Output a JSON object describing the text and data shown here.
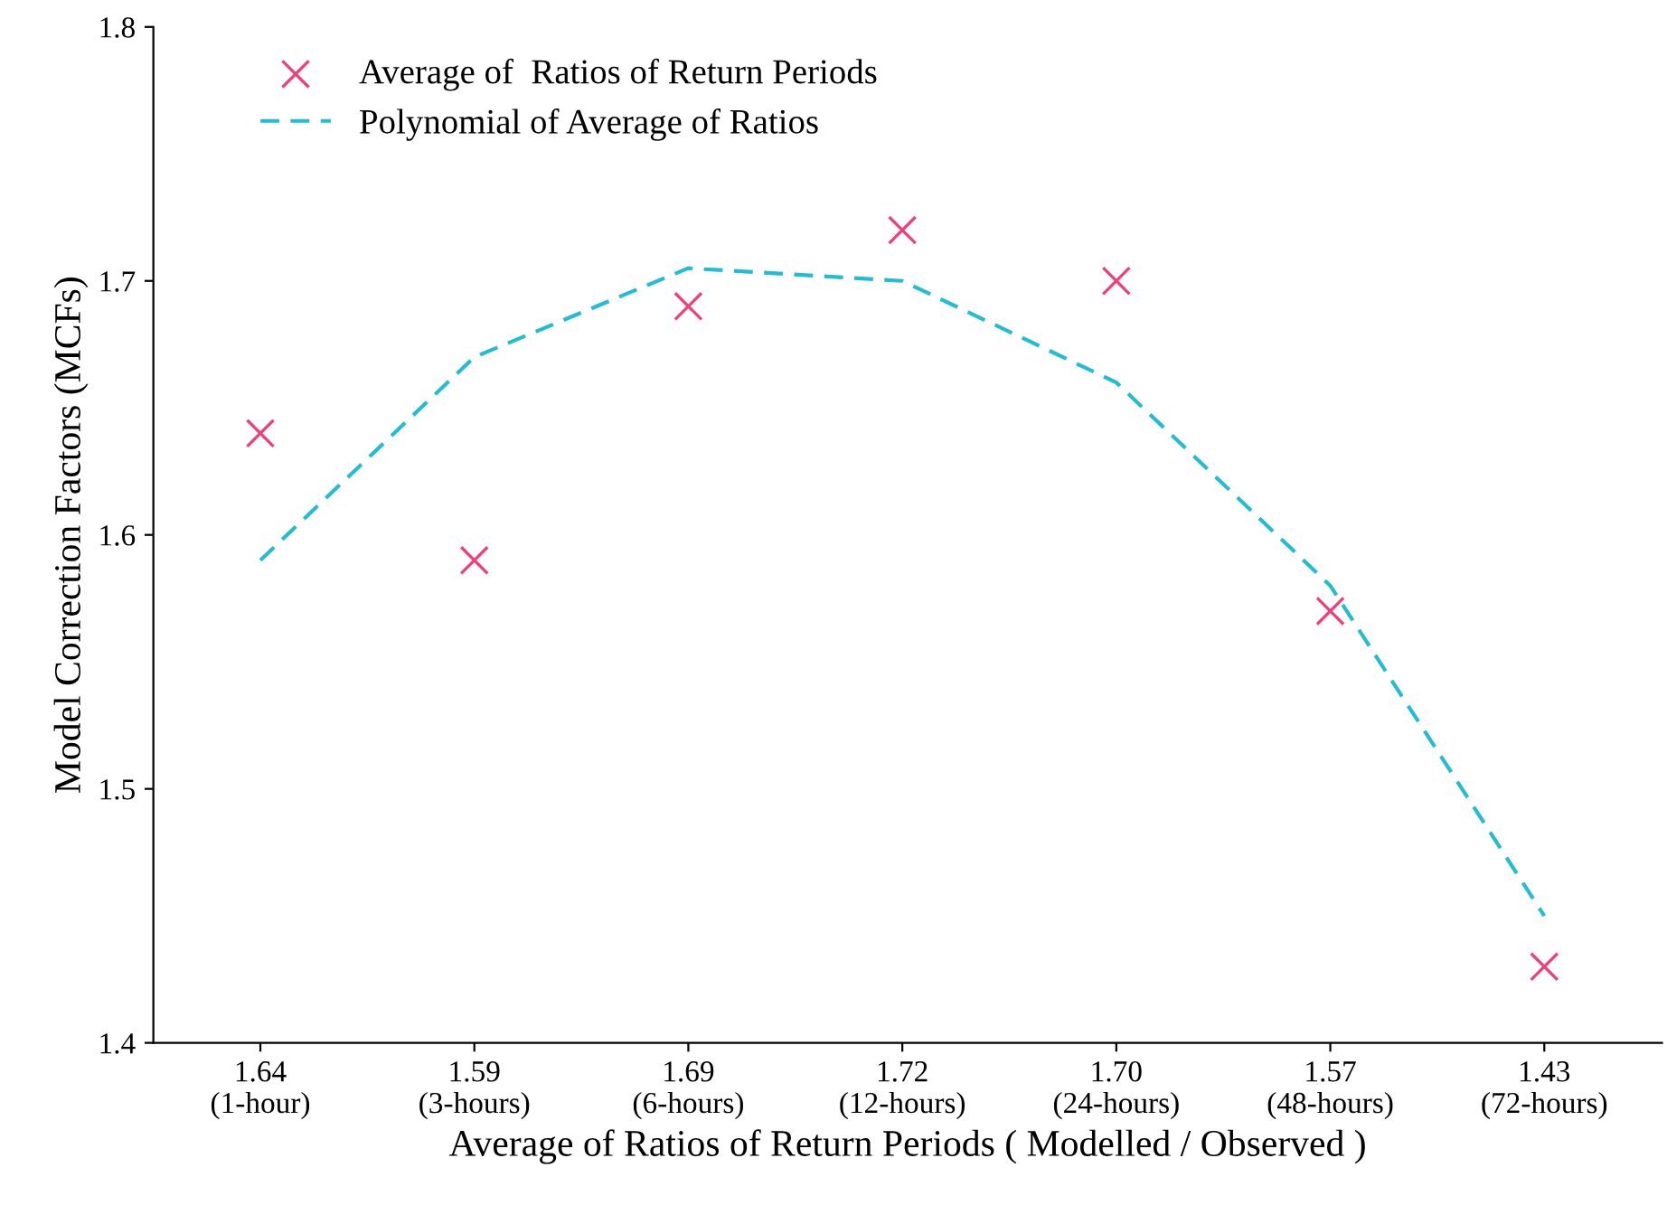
{
  "chart_data": {
    "type": "scatter",
    "xlabel": "Average of Ratios of Return Periods ( Modelled / Observed )",
    "ylabel": "Model Correction Factors (MCFs)",
    "categories": [
      "1.64\n(1-hour)",
      "1.59\n(3-hours)",
      "1.69\n(6-hours)",
      "1.72\n(12-hours)",
      "1.70\n(24-hours)",
      "1.57\n(48-hours)",
      "1.43\n(72-hours)"
    ],
    "series": [
      {
        "name": "Average of  Ratios of Return Periods",
        "color": "#f0407a",
        "marker": "cross",
        "values": [
          1.64,
          1.59,
          1.69,
          1.72,
          1.7,
          1.57,
          1.43
        ]
      },
      {
        "name": "Polynomial of Average of Ratios",
        "type": "line",
        "color": "#22bcd4",
        "line_style": "dashed",
        "marker": "none",
        "values": [
          1.59,
          1.67,
          1.705,
          1.7,
          1.66,
          1.58,
          1.45
        ]
      }
    ],
    "ylim": [
      1.4,
      1.8
    ],
    "yticks": [
      1.4,
      1.5,
      1.6,
      1.7,
      1.8
    ],
    "grid": false,
    "legend": "top left"
  }
}
